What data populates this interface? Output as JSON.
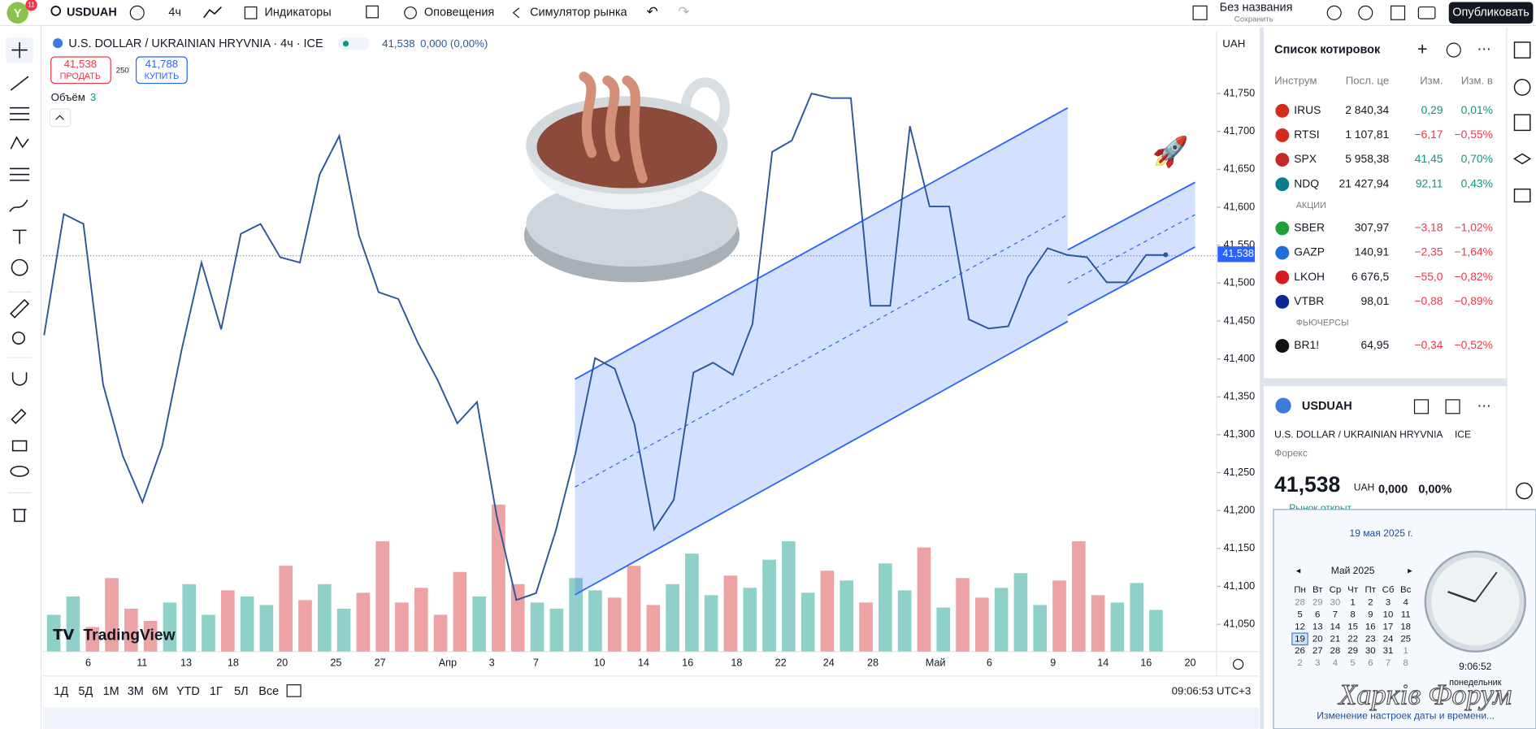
{
  "top_bar": {
    "notifications": "11",
    "symbol": "USDUAH",
    "interval": "4ч",
    "indicators": "Индикаторы",
    "alerts": "Оповещения",
    "replay": "Симулятор рынка",
    "layout_name": "Без названия",
    "save": "Сохранить",
    "publish": "Опубликовать"
  },
  "legend": {
    "title": "U.S. DOLLAR / UKRAINIAN HRYVNIA · 4ч · ICE",
    "last": "41,538",
    "change": "0,000 (0,00%)",
    "sell_price": "41,538",
    "sell": "ПРОДАТЬ",
    "spread": "250",
    "buy_price": "41,788",
    "buy": "КУПИТЬ",
    "volume_label": "Объём",
    "volume_value": "3"
  },
  "chart": {
    "type": "line",
    "currency": "UAH",
    "line_color": "#2b579a",
    "up_color": "#8fd1c9",
    "down_color": "#eda3a3",
    "ylim": [
      41014,
      41828
    ],
    "yticks": [
      {
        "value": 41050,
        "label": "41,050"
      },
      {
        "value": 41100,
        "label": "41,100"
      },
      {
        "value": 41150,
        "label": "41,150"
      },
      {
        "value": 41200,
        "label": "41,200"
      },
      {
        "value": 41250,
        "label": "41,250"
      },
      {
        "value": 41300,
        "label": "41,300"
      },
      {
        "value": 41350,
        "label": "41,350"
      },
      {
        "value": 41400,
        "label": "41,400"
      },
      {
        "value": 41450,
        "label": "41,450"
      },
      {
        "value": 41500,
        "label": "41,500"
      },
      {
        "value": 41550,
        "label": "41,550"
      },
      {
        "value": 41600,
        "label": "41,600"
      },
      {
        "value": 41650,
        "label": "41,650"
      },
      {
        "value": 41700,
        "label": "41,700"
      },
      {
        "value": 41750,
        "label": "41,750"
      }
    ],
    "last_price": {
      "value": 41538,
      "label": "41,538"
    },
    "categories": [
      "6",
      "11",
      "13",
      "18",
      "20",
      "25",
      "27",
      "Апр",
      "3",
      "7",
      "10",
      "14",
      "16",
      "18",
      "22",
      "24",
      "28",
      "Май",
      "6",
      "9",
      "14",
      "16",
      "20"
    ],
    "values": [
      41431,
      41591,
      41578,
      41366,
      41272,
      41211,
      41285,
      41413,
      41527,
      41439,
      41565,
      41578,
      41534,
      41527,
      41643,
      41694,
      41563,
      41488,
      41479,
      41421,
      41372,
      41315,
      41343,
      41193,
      41082,
      41091,
      41173,
      41275,
      41401,
      41387,
      41314,
      41175,
      41214,
      41382,
      41395,
      41379,
      41446,
      41673,
      41688,
      41750,
      41744,
      41744,
      41470,
      41470,
      41707,
      41601,
      41601,
      41452,
      41440,
      41443,
      41508,
      41546,
      41537,
      41534,
      41501,
      41501,
      41537,
      41537
    ],
    "volume": [
      30,
      45,
      20,
      60,
      35,
      25,
      40,
      55,
      30,
      50,
      45,
      38,
      70,
      42,
      55,
      35,
      48,
      90,
      40,
      52,
      30,
      65,
      45,
      120,
      55,
      40,
      35,
      60,
      50,
      44,
      70,
      38,
      55,
      80,
      46,
      62,
      52,
      75,
      90,
      48,
      66,
      58,
      40,
      72,
      50,
      85,
      36,
      60,
      44,
      52,
      64,
      38,
      58,
      90,
      46,
      40,
      56,
      34
    ],
    "watermark": "TradingView"
  },
  "bottom_bar": {
    "ranges": [
      "1Д",
      "5Д",
      "1M",
      "3M",
      "6M",
      "YTD",
      "1Г",
      "5Л",
      "Все"
    ],
    "time": "09:06:53 UTC+3"
  },
  "watchlist": {
    "title": "Список котировок",
    "columns": [
      "Инструм",
      "Посл. це",
      "Изм.",
      "Изм. в"
    ],
    "groups": [
      {
        "rows": [
          {
            "symbol": "IRUS",
            "price": "2 840,34",
            "change": "0,29",
            "change_pct": "0,01%",
            "color": "#089981"
          },
          {
            "symbol": "RTSI",
            "price": "1 107,81",
            "change": "−6,17",
            "change_pct": "−0,55%",
            "color": "#f23645"
          },
          {
            "symbol": "SPX",
            "price": "5 958,38",
            "change": "41,45",
            "change_pct": "0,70%",
            "color": "#089981"
          },
          {
            "symbol": "NDQ",
            "price": "21 427,94",
            "change": "92,11",
            "change_pct": "0,43%",
            "color": "#089981"
          }
        ]
      },
      {
        "name": "АКЦИИ",
        "rows": [
          {
            "symbol": "SBER",
            "price": "307,97",
            "change": "−3,18",
            "change_pct": "−1,02%",
            "color": "#f23645"
          },
          {
            "symbol": "GAZP",
            "price": "140,91",
            "change": "−2,35",
            "change_pct": "−1,64%",
            "color": "#f23645"
          },
          {
            "symbol": "LKOH",
            "price": "6 676,5",
            "change": "−55,0",
            "change_pct": "−0,82%",
            "color": "#f23645"
          },
          {
            "symbol": "VTBR",
            "price": "98,01",
            "change": "−0,88",
            "change_pct": "−0,89%",
            "color": "#f23645"
          }
        ]
      },
      {
        "name": "ФЬЮЧЕРСЫ",
        "rows": [
          {
            "symbol": "BR1!",
            "price": "64,95",
            "change": "−0,34",
            "change_pct": "−0,52%",
            "color": "#f23645"
          }
        ]
      }
    ]
  },
  "details": {
    "symbol": "USDUAH",
    "name": "U.S. DOLLAR / UKRAINIAN HRYVNIA",
    "exchange": "ICE",
    "kind": "Форекс",
    "price": "41,538",
    "currency": "UAH",
    "change": "0,000",
    "change_pct": "0,00%",
    "status": "Рынок открыт"
  },
  "calendar": {
    "date": "19 мая 2025 г.",
    "month": "Май 2025",
    "weekdays": [
      "Пн",
      "Вт",
      "Ср",
      "Чт",
      "Пт",
      "Сб",
      "Вс"
    ],
    "weeks": [
      [
        28,
        29,
        30,
        1,
        2,
        3,
        4
      ],
      [
        5,
        6,
        7,
        8,
        9,
        10,
        11
      ],
      [
        12,
        13,
        14,
        15,
        16,
        17,
        18
      ],
      [
        19,
        20,
        21,
        22,
        23,
        24,
        25
      ],
      [
        26,
        27,
        28,
        29,
        30,
        31,
        1
      ],
      [
        2,
        3,
        4,
        5,
        6,
        7,
        8
      ]
    ],
    "time": "9:06:52",
    "weekday": "понедельник",
    "link": "Изменение настроек даты и времени..."
  },
  "forum_watermark": "Харків Форум"
}
